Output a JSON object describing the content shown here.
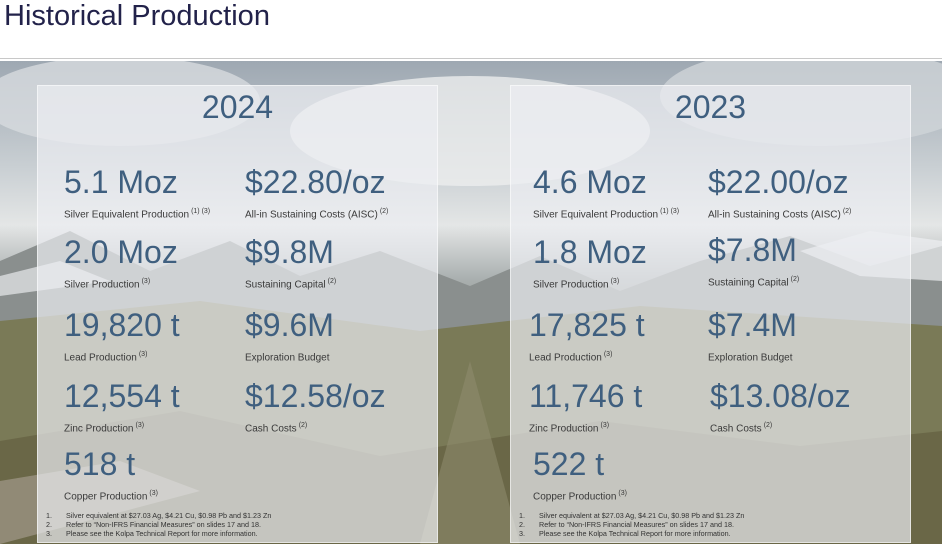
{
  "page": {
    "title": "Historical Production"
  },
  "panels": [
    {
      "year": "2024",
      "metrics": [
        {
          "value": "5.1 Moz",
          "label": "Silver Equivalent Production",
          "note": "(1) (3)"
        },
        {
          "value": "$22.80/oz",
          "label": "All-in Sustaining Costs (AISC)",
          "note": "(2)"
        },
        {
          "value": "2.0 Moz",
          "label": "Silver Production",
          "note": "(3)"
        },
        {
          "value": "$9.8M",
          "label": "Sustaining Capital",
          "note": "(2)"
        },
        {
          "value": "19,820 t",
          "label": "Lead Production",
          "note": "(3)"
        },
        {
          "value": "$9.6M",
          "label": "Exploration Budget",
          "note": ""
        },
        {
          "value": "12,554 t",
          "label": "Zinc Production",
          "note": "(3)"
        },
        {
          "value": "$12.58/oz",
          "label": "Cash Costs",
          "note": "(2)"
        },
        {
          "value": "518 t",
          "label": "Copper Production",
          "note": "(3)"
        }
      ],
      "footnotes": [
        {
          "num": "1.",
          "text": "Silver equivalent at $27.03 Ag, $4.21 Cu, $0.98 Pb and $1.23 Zn"
        },
        {
          "num": "2.",
          "text": "Refer to “Non-IFRS Financial Measures” on slides 17  and 18."
        },
        {
          "num": "3.",
          "text": "Please see the Kolpa Technical Report for more information."
        }
      ]
    },
    {
      "year": "2023",
      "metrics": [
        {
          "value": "4.6 Moz",
          "label": "Silver Equivalent Production",
          "note": "(1) (3)"
        },
        {
          "value": "$22.00/oz",
          "label": "All-in Sustaining Costs (AISC)",
          "note": "(2)"
        },
        {
          "value": "1.8 Moz",
          "label": "Silver Production",
          "note": "(3)"
        },
        {
          "value": "$7.8M",
          "label": "Sustaining Capital",
          "note": "(2)"
        },
        {
          "value": "17,825 t",
          "label": "Lead Production",
          "note": "(3)"
        },
        {
          "value": "$7.4M",
          "label": "Exploration Budget",
          "note": ""
        },
        {
          "value": "11,746 t",
          "label": "Zinc Production",
          "note": "(3)"
        },
        {
          "value": "$13.08/oz",
          "label": "Cash Costs",
          "note": "(2)"
        },
        {
          "value": "522 t",
          "label": "Copper Production",
          "note": "(3)"
        }
      ],
      "footnotes": [
        {
          "num": "1.",
          "text": "Silver equivalent at $27.03 Ag, $4.21 Cu, $0.98 Pb and $1.23 Zn"
        },
        {
          "num": "2.",
          "text": "Refer to “Non-IFRS Financial Measures” on slides 17 and 18."
        },
        {
          "num": "3.",
          "text": "Please see the Kolpa Technical Report for more information."
        }
      ]
    }
  ]
}
